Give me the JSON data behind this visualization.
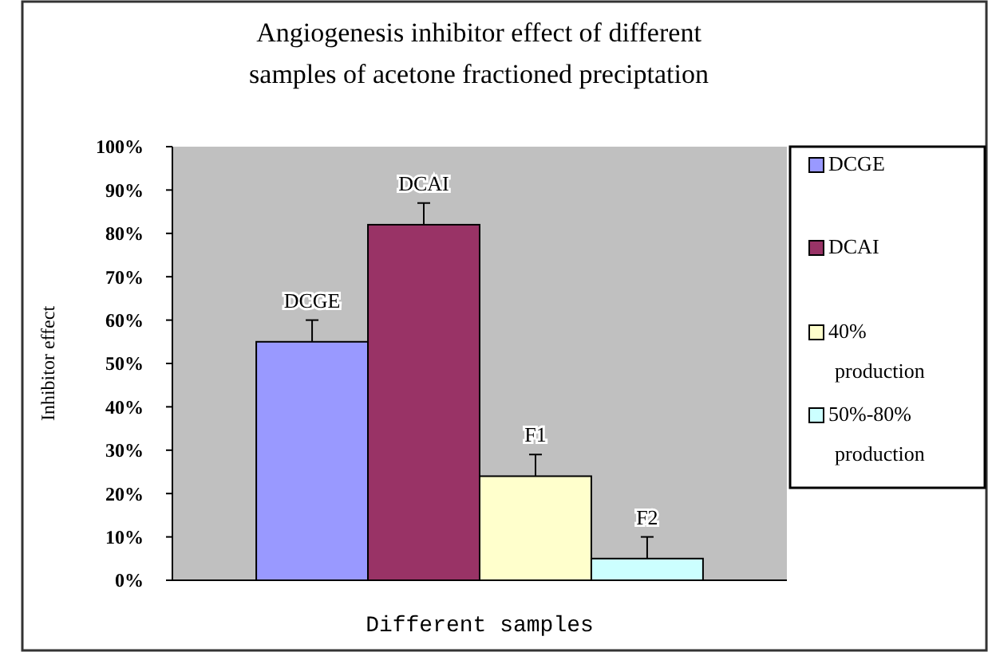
{
  "chart_data": {
    "type": "bar",
    "title": "Angiogenesis inhibitor effect of different\nsamples of acetone fractioned preciptation",
    "xlabel": "Different samples",
    "ylabel": "Inhibitor effect",
    "categories": [
      null
    ],
    "series": [
      {
        "name": "DCGE",
        "color": "#9999ff",
        "values": [
          55
        ],
        "errors": [
          5
        ],
        "value_labels": [
          "DCGE"
        ]
      },
      {
        "name": "DCAI",
        "color": "#993366",
        "values": [
          82
        ],
        "errors": [
          5
        ],
        "value_labels": [
          "DCAI"
        ]
      },
      {
        "name": "40% production",
        "color": "#ffffcc",
        "values": [
          24
        ],
        "errors": [
          5
        ],
        "value_labels": [
          "F1"
        ]
      },
      {
        "name": "50%-80% production",
        "color": "#ccffff",
        "values": [
          5
        ],
        "errors": [
          5
        ],
        "value_labels": [
          "F2"
        ]
      }
    ],
    "ylim": [
      0,
      100
    ],
    "yticks": [
      {
        "value": 0,
        "label": "0%"
      },
      {
        "value": 10,
        "label": "10%"
      },
      {
        "value": 20,
        "label": "20%"
      },
      {
        "value": 30,
        "label": "30%"
      },
      {
        "value": 40,
        "label": "40%"
      },
      {
        "value": 50,
        "label": "50%"
      },
      {
        "value": 60,
        "label": "60%"
      },
      {
        "value": 70,
        "label": "70%"
      },
      {
        "value": 80,
        "label": "80%"
      },
      {
        "value": 90,
        "label": "90%"
      },
      {
        "value": 100,
        "label": "100%"
      }
    ],
    "grid": false,
    "legend": "right"
  }
}
